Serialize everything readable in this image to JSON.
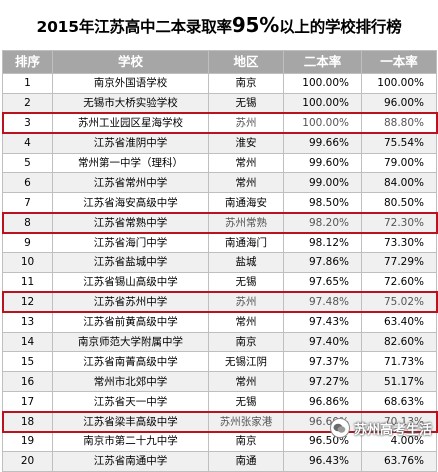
{
  "title": {
    "prefix": "2015年江苏高中二本录取率",
    "percent": "95%",
    "suffix": "以上的学校排行榜"
  },
  "headers": [
    "排序",
    "学校",
    "地区",
    "二本率",
    "一本率"
  ],
  "rows": [
    {
      "rank": "1",
      "school": "南京外国语学校",
      "region": "南京",
      "second": "100.00%",
      "first": "100.00%"
    },
    {
      "rank": "2",
      "school": "无锡市大桥实验学校",
      "region": "无锡",
      "second": "100.00%",
      "first": "96.00%"
    },
    {
      "rank": "3",
      "school": "苏州工业园区星海学校",
      "region": "苏州",
      "second": "100.00%",
      "first": "88.80%"
    },
    {
      "rank": "4",
      "school": "江苏省淮阴中学",
      "region": "淮安",
      "second": "99.66%",
      "first": "75.54%"
    },
    {
      "rank": "5",
      "school": "常州第一中学（理科）",
      "region": "常州",
      "second": "99.60%",
      "first": "79.00%"
    },
    {
      "rank": "6",
      "school": "江苏省常州中学",
      "region": "常州",
      "second": "99.00%",
      "first": "84.00%"
    },
    {
      "rank": "7",
      "school": "江苏省海安高级中学",
      "region": "南通海安",
      "second": "98.50%",
      "first": "80.50%"
    },
    {
      "rank": "8",
      "school": "江苏省常熟中学",
      "region": "苏州常熟",
      "second": "98.20%",
      "first": "72.30%"
    },
    {
      "rank": "9",
      "school": "江苏省海门中学",
      "region": "南通海门",
      "second": "98.12%",
      "first": "73.30%"
    },
    {
      "rank": "10",
      "school": "江苏省盐城中学",
      "region": "盐城",
      "second": "97.86%",
      "first": "77.29%"
    },
    {
      "rank": "11",
      "school": "江苏省锡山高级中学",
      "region": "无锡",
      "second": "97.65%",
      "first": "72.60%"
    },
    {
      "rank": "12",
      "school": "江苏省苏州中学",
      "region": "苏州",
      "second": "97.48%",
      "first": "75.02%"
    },
    {
      "rank": "13",
      "school": "江苏省前黄高级中学",
      "region": "常州",
      "second": "97.43%",
      "first": "63.40%"
    },
    {
      "rank": "14",
      "school": "南京师范大学附属中学",
      "region": "南京",
      "second": "97.40%",
      "first": "82.60%"
    },
    {
      "rank": "15",
      "school": "江苏省南菁高级中学",
      "region": "无锡江阴",
      "second": "97.37%",
      "first": "71.73%"
    },
    {
      "rank": "16",
      "school": "常州市北郊中学",
      "region": "常州",
      "second": "97.27%",
      "first": "51.17%"
    },
    {
      "rank": "17",
      "school": "江苏省天一中学",
      "region": "无锡",
      "second": "96.86%",
      "first": "68.63%"
    },
    {
      "rank": "18",
      "school": "江苏省梁丰高级中学",
      "region": "苏州张家港",
      "second": "96.60%",
      "first": "70.13%"
    },
    {
      "rank": "19",
      "school": "南京市第二十九中学",
      "region": "南京",
      "second": "96.50%",
      "first": "4.00%"
    },
    {
      "rank": "20",
      "school": "江苏省南通中学",
      "region": "南通",
      "second": "96.43%",
      "first": "63.76%"
    }
  ],
  "highlighted_ranks": [
    "3",
    "8",
    "12",
    "18"
  ],
  "watermark": {
    "text": "苏州高考生活",
    "icon": "wechat-icon"
  },
  "colors": {
    "header_bg": "#a6a6a6",
    "highlight_border": "#b8131f"
  }
}
